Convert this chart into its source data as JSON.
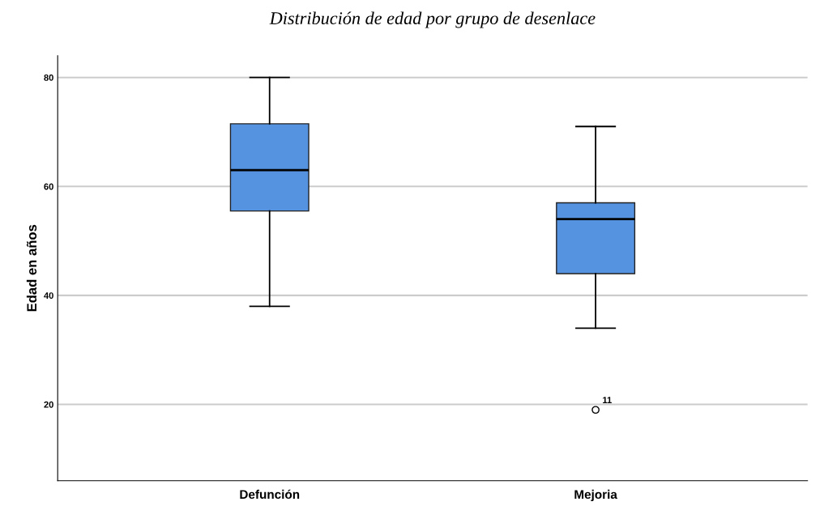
{
  "chart_data": {
    "type": "box",
    "title": "Distribución de edad por grupo de desenlace",
    "ylabel": "Edad en años",
    "categories": [
      "Defunción",
      "Mejoria"
    ],
    "boxes": [
      {
        "low": 38,
        "q1": 55.5,
        "median": 63,
        "q3": 71.5,
        "high": 80
      },
      {
        "low": 34,
        "q1": 44,
        "median": 54,
        "q3": 57,
        "high": 71,
        "outliers": [
          19
        ]
      }
    ],
    "color": "#5592e0",
    "ylim": [
      6,
      84
    ],
    "yticks": [
      20,
      40,
      60,
      80
    ],
    "grid": "y",
    "legend": false,
    "annotations": [
      "11"
    ]
  }
}
